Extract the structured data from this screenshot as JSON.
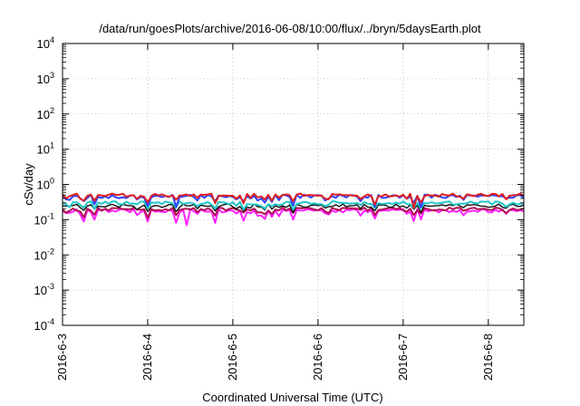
{
  "chart_data": {
    "type": "line",
    "title": "/data/run/goesPlots/archive/2016-06-08/10:00/flux/../bryn/5daysEarth.plot",
    "xlabel": "Coordinated Universal Time (UTC)",
    "ylabel": "cSv/day",
    "yscale": "log",
    "ylim": [
      0.0001,
      10000
    ],
    "xlim": [
      "2016-06-03",
      "2016-06-08T10:00"
    ],
    "grid": true,
    "legend": "none",
    "xticks": [
      "2016-6-3",
      "2016-6-4",
      "2016-6-5",
      "2016-6-6",
      "2016-6-7",
      "2016-6-8"
    ],
    "yticks": [
      {
        "base": "10",
        "exp": "-4"
      },
      {
        "base": "10",
        "exp": "-3"
      },
      {
        "base": "10",
        "exp": "-2"
      },
      {
        "base": "10",
        "exp": "-1"
      },
      {
        "base": "10",
        "exp": "0"
      },
      {
        "base": "10",
        "exp": "1"
      },
      {
        "base": "10",
        "exp": "2"
      },
      {
        "base": "10",
        "exp": "3"
      },
      {
        "base": "10",
        "exp": "4"
      }
    ],
    "sample_interval_hours": 1,
    "series": [
      {
        "color": "#e02020",
        "level": 0.5,
        "dip": 0.58
      },
      {
        "color": "#3040ff",
        "level": 0.46,
        "dip": 0.6
      },
      {
        "color": "#20c8c8",
        "level": 0.3,
        "dip": 0.7
      },
      {
        "color": "#111111",
        "level": 0.25,
        "dip": 0.72
      },
      {
        "color": "#ff20ff",
        "level": 0.18,
        "dip": 0.55
      },
      {
        "color": "#b01050",
        "level": 0.2,
        "dip": 0.7
      }
    ]
  }
}
